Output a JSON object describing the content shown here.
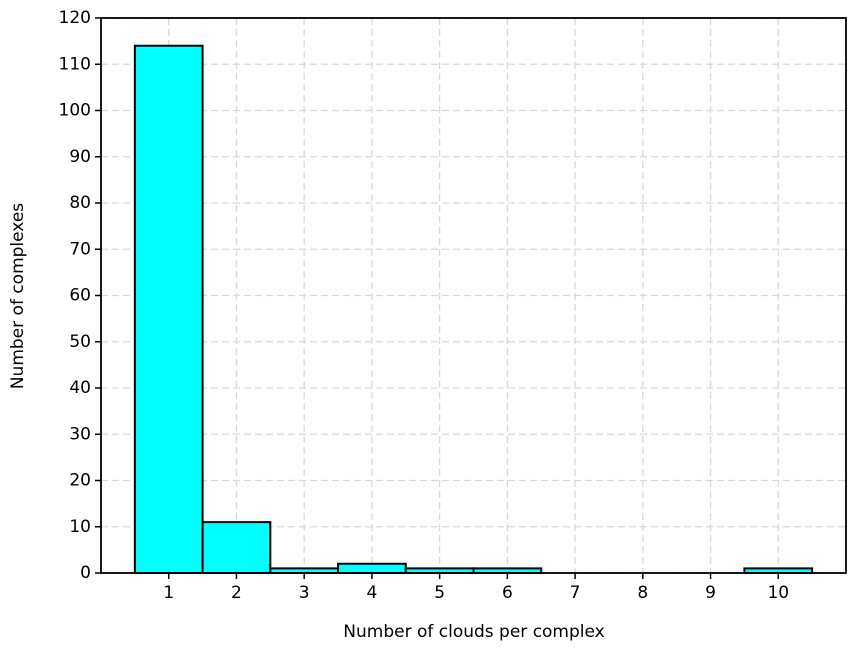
{
  "chart_data": {
    "type": "histogram",
    "xlabel": "Number of clouds per complex",
    "ylabel": "Number of complexes",
    "bins": [
      0.5,
      1.5,
      2.5,
      3.5,
      4.5,
      5.5,
      6.5,
      7.5,
      8.5,
      9.5,
      10.5
    ],
    "counts": [
      114,
      11,
      1,
      2,
      1,
      1,
      0,
      0,
      0,
      1
    ],
    "color": "#00ffff",
    "edgecolor": "#000000",
    "xlim": [
      0,
      11
    ],
    "xticks": [
      1,
      2,
      3,
      4,
      5,
      6,
      7,
      8,
      9,
      10
    ],
    "ylim": [
      0,
      120
    ],
    "yticks": [
      0,
      10,
      20,
      30,
      40,
      50,
      60,
      70,
      80,
      90,
      100,
      110,
      120
    ],
    "grid": true
  }
}
